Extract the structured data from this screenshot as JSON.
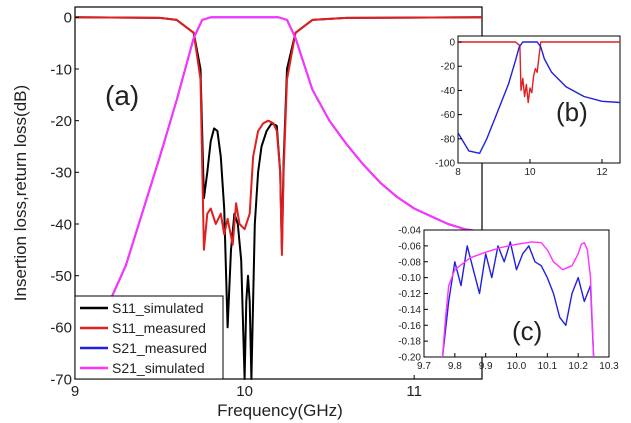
{
  "chart_data": [
    {
      "id": "main",
      "type": "line",
      "panel_label": "(a)",
      "xlabel": "Frequency(GHz)",
      "ylabel": "Insertion loss,return loss(dB)",
      "xlim": [
        9,
        11.4
      ],
      "ylim": [
        -70,
        2
      ],
      "xticks": [
        "9",
        "10",
        "11"
      ],
      "yticks": [
        "0",
        "-10",
        "-20",
        "-30",
        "-40",
        "-50",
        "-60",
        "-70"
      ],
      "grid": false,
      "legend_position": "bottom-left",
      "series": [
        {
          "name": "S11_simulated",
          "color": "#000000",
          "x": [
            9.0,
            9.5,
            9.6,
            9.7,
            9.74,
            9.76,
            9.78,
            9.8,
            9.82,
            9.84,
            9.86,
            9.88,
            9.9,
            9.92,
            9.94,
            9.96,
            9.98,
            10.0,
            10.01,
            10.02,
            10.03,
            10.04,
            10.06,
            10.08,
            10.1,
            10.13,
            10.16,
            10.19,
            10.21,
            10.22,
            10.23,
            10.25,
            10.3,
            10.4,
            10.6,
            11.4
          ],
          "y": [
            0,
            -0.1,
            -0.5,
            -3,
            -10,
            -35,
            -30,
            -24,
            -21.5,
            -22,
            -27,
            -37,
            -60,
            -45,
            -38,
            -40,
            -47,
            -70,
            -55,
            -50,
            -55,
            -70,
            -40,
            -30,
            -25,
            -22,
            -20.5,
            -21,
            -30,
            -45,
            -28,
            -10,
            -3,
            -0.5,
            -0.1,
            0
          ]
        },
        {
          "name": "S11_measured",
          "color": "#e02020",
          "x": [
            9.0,
            9.5,
            9.6,
            9.7,
            9.74,
            9.76,
            9.78,
            9.8,
            9.83,
            9.86,
            9.88,
            9.9,
            9.93,
            9.95,
            9.97,
            10.0,
            10.03,
            10.05,
            10.08,
            10.11,
            10.14,
            10.17,
            10.19,
            10.21,
            10.22,
            10.23,
            10.25,
            10.3,
            10.4,
            10.6,
            11.4
          ],
          "y": [
            0,
            -0.1,
            -0.5,
            -3,
            -12,
            -45,
            -38,
            -37,
            -40,
            -38,
            -42,
            -39,
            -44,
            -36,
            -40,
            -41,
            -38,
            -27,
            -22,
            -20.5,
            -20,
            -20.5,
            -22,
            -30,
            -46,
            -30,
            -12,
            -3,
            -0.5,
            -0.1,
            0
          ]
        },
        {
          "name": "S21_measured",
          "color": "#2020e0",
          "x": [
            9.0,
            9.3,
            9.5,
            9.6,
            9.65,
            9.7,
            9.75,
            9.8,
            10.2,
            10.25,
            10.3,
            10.35,
            10.4,
            10.5,
            10.6,
            10.7,
            10.8,
            10.9,
            11.0,
            11.1,
            11.2,
            11.3,
            11.4
          ],
          "y": [
            -70,
            -48,
            -27,
            -16,
            -10,
            -4,
            -0.5,
            0,
            0,
            -0.5,
            -4,
            -9,
            -14,
            -20,
            -24.5,
            -28.5,
            -32,
            -34.8,
            -37,
            -38.5,
            -40,
            -41,
            -41.5
          ]
        },
        {
          "name": "S21_simulated",
          "color": "#ff33ff",
          "x": [
            9.0,
            9.3,
            9.5,
            9.6,
            9.65,
            9.7,
            9.75,
            9.8,
            10.2,
            10.25,
            10.3,
            10.35,
            10.4,
            10.5,
            10.6,
            10.7,
            10.8,
            10.9,
            11.0,
            11.1,
            11.2,
            11.3,
            11.4
          ],
          "y": [
            -70,
            -48,
            -27,
            -16,
            -10,
            -4,
            -0.5,
            0,
            0,
            -0.5,
            -4,
            -9,
            -14,
            -20,
            -24.5,
            -28.5,
            -32,
            -34.8,
            -37,
            -38.5,
            -40,
            -41,
            -41.5
          ]
        }
      ]
    },
    {
      "id": "inset_b",
      "type": "line",
      "panel_label": "(b)",
      "xlim": [
        8,
        12.5
      ],
      "ylim": [
        -100,
        5
      ],
      "xticks": [
        "8",
        "10",
        "12"
      ],
      "yticks": [
        "0",
        "-20",
        "-40",
        "-60",
        "-80",
        "-100"
      ],
      "series": [
        {
          "name": "S11",
          "color": "#e02020",
          "x": [
            8.0,
            9.6,
            9.72,
            9.75,
            9.8,
            9.85,
            9.9,
            9.95,
            10.0,
            10.05,
            10.1,
            10.15,
            10.2,
            10.25,
            10.3,
            12.5
          ],
          "y": [
            0,
            0,
            -3,
            -40,
            -30,
            -45,
            -35,
            -50,
            -38,
            -42,
            -28,
            -22,
            -25,
            -12,
            0,
            0
          ]
        },
        {
          "name": "S21",
          "color": "#2020e0",
          "x": [
            8.0,
            8.3,
            8.6,
            8.8,
            9.0,
            9.2,
            9.4,
            9.6,
            9.7,
            9.8,
            10.2,
            10.3,
            10.4,
            10.6,
            11.0,
            11.5,
            12.0,
            12.5
          ],
          "y": [
            -75,
            -90,
            -92,
            -80,
            -65,
            -50,
            -35,
            -15,
            -4,
            0,
            0,
            -4,
            -14,
            -25,
            -37,
            -45,
            -49,
            -50
          ]
        }
      ]
    },
    {
      "id": "inset_c",
      "type": "line",
      "panel_label": "(c)",
      "xlim": [
        9.7,
        10.3
      ],
      "ylim": [
        -0.2,
        -0.04
      ],
      "xticks": [
        "9.7",
        "9.8",
        "9.9",
        "10.0",
        "10.1",
        "10.2",
        "10.3"
      ],
      "yticks": [
        "-0.04",
        "-0.06",
        "-0.08",
        "-0.10",
        "-0.12",
        "-0.14",
        "-0.16",
        "-0.18",
        "-0.20"
      ],
      "series": [
        {
          "name": "S21_measured",
          "color": "#2020e0",
          "x": [
            9.76,
            9.78,
            9.8,
            9.82,
            9.84,
            9.86,
            9.88,
            9.9,
            9.92,
            9.94,
            9.96,
            9.98,
            10.0,
            10.02,
            10.04,
            10.06,
            10.08,
            10.1,
            10.12,
            10.14,
            10.16,
            10.18,
            10.2,
            10.22,
            10.24,
            10.25
          ],
          "y": [
            -0.2,
            -0.13,
            -0.08,
            -0.11,
            -0.06,
            -0.09,
            -0.12,
            -0.07,
            -0.1,
            -0.06,
            -0.08,
            -0.055,
            -0.09,
            -0.07,
            -0.06,
            -0.08,
            -0.085,
            -0.1,
            -0.12,
            -0.15,
            -0.16,
            -0.12,
            -0.1,
            -0.13,
            -0.11,
            -0.2
          ]
        },
        {
          "name": "S21_simulated",
          "color": "#ff33ff",
          "x": [
            9.76,
            9.77,
            9.78,
            9.8,
            9.85,
            9.9,
            9.95,
            10.0,
            10.05,
            10.08,
            10.1,
            10.12,
            10.15,
            10.18,
            10.2,
            10.21,
            10.22,
            10.23,
            10.24,
            10.25
          ],
          "y": [
            -0.2,
            -0.15,
            -0.11,
            -0.09,
            -0.075,
            -0.068,
            -0.062,
            -0.058,
            -0.055,
            -0.056,
            -0.065,
            -0.08,
            -0.09,
            -0.085,
            -0.07,
            -0.058,
            -0.056,
            -0.065,
            -0.1,
            -0.2
          ]
        }
      ]
    }
  ]
}
